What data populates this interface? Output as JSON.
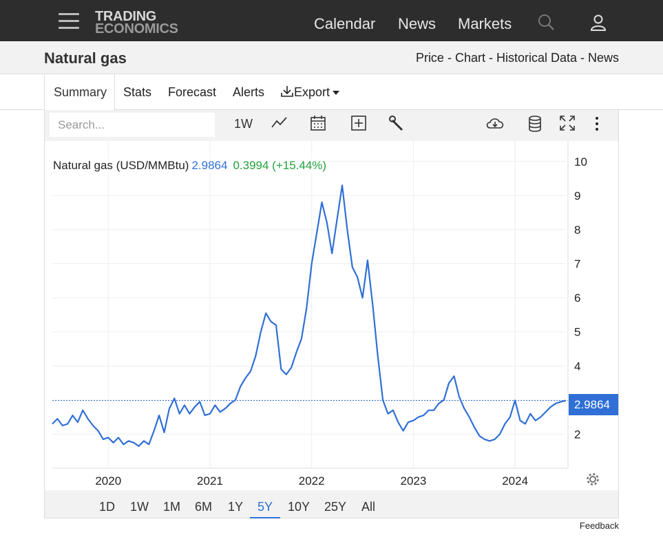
{
  "header": {
    "logo_line1": "TRADING",
    "logo_line2": "ECONOMICS",
    "nav": [
      "Calendar",
      "News",
      "Markets"
    ],
    "icons": [
      "menu-icon",
      "search-icon",
      "user-icon"
    ]
  },
  "titlebar": {
    "title": "Natural gas",
    "breadcrumb": "Price - Chart - Historical Data - News"
  },
  "tabs": {
    "items": [
      "Summary",
      "Stats",
      "Forecast",
      "Alerts",
      "Export"
    ],
    "active": "Summary"
  },
  "toolbar": {
    "search_placeholder": "Search...",
    "interval": "1W",
    "icons": [
      "line-chart-icon",
      "calendar-icon",
      "add-icon",
      "wrench-icon",
      "cloud-download-icon",
      "database-icon",
      "fullscreen-icon",
      "more-icon"
    ]
  },
  "ranges": {
    "items": [
      "1D",
      "1W",
      "1M",
      "6M",
      "1Y",
      "5Y",
      "10Y",
      "25Y",
      "All"
    ],
    "active": "5Y"
  },
  "legend": {
    "label": "Natural gas (USD/MMBtu)",
    "price": "2.9864",
    "change": "0.3994 (+15.44%)"
  },
  "last_price_badge": "2.9864",
  "feedback": "Feedback",
  "colors": {
    "line": "#2f6fd6",
    "change_positive": "#22a03c",
    "topbar": "#2d2d2d"
  },
  "chart_data": {
    "type": "line",
    "title": "",
    "xlabel": "",
    "ylabel": "",
    "x_ticks": [
      "2020",
      "2021",
      "2022",
      "2023",
      "2024"
    ],
    "y_ticks": [
      2,
      3,
      4,
      5,
      6,
      7,
      8,
      9,
      10
    ],
    "ylim": [
      1,
      10.6
    ],
    "xlim": [
      2019.45,
      2024.5
    ],
    "grid": true,
    "last_value": 2.9864,
    "series": [
      {
        "name": "Natural gas (USD/MMBtu)",
        "x": [
          2019.45,
          2019.5,
          2019.55,
          2019.6,
          2019.65,
          2019.7,
          2019.75,
          2019.8,
          2019.85,
          2019.9,
          2019.95,
          2020.0,
          2020.05,
          2020.1,
          2020.15,
          2020.2,
          2020.25,
          2020.3,
          2020.35,
          2020.4,
          2020.45,
          2020.5,
          2020.55,
          2020.6,
          2020.65,
          2020.7,
          2020.75,
          2020.8,
          2020.85,
          2020.9,
          2020.95,
          2021.0,
          2021.05,
          2021.1,
          2021.15,
          2021.2,
          2021.25,
          2021.3,
          2021.35,
          2021.4,
          2021.45,
          2021.5,
          2021.55,
          2021.6,
          2021.65,
          2021.7,
          2021.75,
          2021.8,
          2021.85,
          2021.9,
          2021.95,
          2022.0,
          2022.05,
          2022.1,
          2022.15,
          2022.2,
          2022.25,
          2022.3,
          2022.35,
          2022.4,
          2022.45,
          2022.5,
          2022.55,
          2022.6,
          2022.65,
          2022.7,
          2022.75,
          2022.8,
          2022.85,
          2022.9,
          2022.95,
          2023.0,
          2023.05,
          2023.1,
          2023.15,
          2023.2,
          2023.25,
          2023.3,
          2023.35,
          2023.4,
          2023.45,
          2023.5,
          2023.55,
          2023.6,
          2023.65,
          2023.7,
          2023.75,
          2023.8,
          2023.85,
          2023.9,
          2023.95,
          2024.0,
          2024.05,
          2024.1,
          2024.15,
          2024.2,
          2024.25,
          2024.3,
          2024.35,
          2024.4,
          2024.45,
          2024.5
        ],
        "values": [
          2.3,
          2.45,
          2.25,
          2.3,
          2.55,
          2.35,
          2.7,
          2.45,
          2.25,
          2.1,
          1.85,
          1.9,
          1.75,
          1.9,
          1.7,
          1.8,
          1.75,
          1.65,
          1.8,
          1.7,
          2.1,
          2.55,
          2.05,
          2.75,
          3.05,
          2.6,
          2.85,
          2.6,
          2.8,
          2.95,
          2.55,
          2.6,
          2.85,
          2.65,
          2.75,
          2.9,
          3.0,
          3.4,
          3.65,
          3.85,
          4.3,
          5.0,
          5.55,
          5.3,
          5.2,
          3.9,
          3.75,
          3.95,
          4.4,
          4.8,
          5.7,
          7.0,
          7.9,
          8.8,
          8.2,
          7.3,
          8.3,
          9.3,
          8.0,
          6.9,
          6.6,
          6.0,
          7.1,
          5.8,
          4.3,
          3.0,
          2.6,
          2.7,
          2.35,
          2.1,
          2.35,
          2.4,
          2.5,
          2.55,
          2.7,
          2.7,
          2.9,
          3.0,
          3.5,
          3.7,
          3.1,
          2.75,
          2.5,
          2.2,
          1.95,
          1.85,
          1.8,
          1.85,
          2.0,
          2.3,
          2.5,
          2.99,
          2.4,
          2.3,
          2.6,
          2.4,
          2.5,
          2.65,
          2.8,
          2.9,
          2.95,
          2.9864
        ]
      }
    ]
  }
}
